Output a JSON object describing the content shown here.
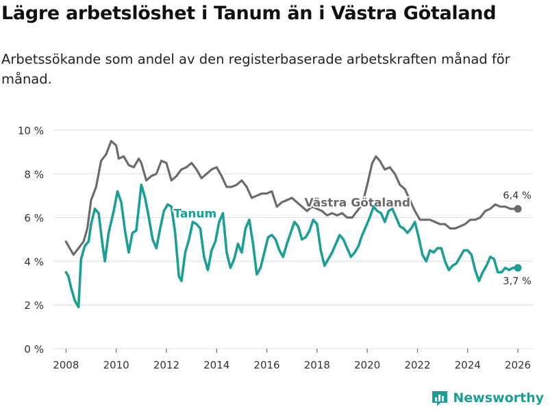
{
  "title": "Lägre arbetslöshet i Tanum än i Västra Götaland",
  "subtitle": "Arbetssökande som andel av den registerbaserade arbetskraften månad för månad.",
  "brand": "Newsworthy",
  "colors": {
    "tanum": "#1b9e93",
    "vg": "#6b6b6b",
    "grid": "#dddddd",
    "text": "#333333"
  },
  "chart_data": {
    "type": "line",
    "title": "Lägre arbetslöshet i Tanum än i Västra Götaland",
    "xlabel": "",
    "ylabel": "",
    "xlim": [
      2007.5,
      2026.6
    ],
    "ylim": [
      0,
      10
    ],
    "yticks": [
      0,
      2,
      4,
      6,
      8,
      10
    ],
    "ytick_labels": [
      "0 %",
      "2 %",
      "4 %",
      "6 %",
      "8 %",
      "10 %"
    ],
    "xticks": [
      2008,
      2010,
      2012,
      2014,
      2016,
      2018,
      2020,
      2022,
      2024,
      2026
    ],
    "xtick_labels": [
      "2008",
      "2010",
      "2012",
      "2014",
      "2016",
      "2018",
      "2020",
      "2022",
      "2024",
      "2026"
    ],
    "series": [
      {
        "name": "Västra Götaland",
        "label": "Västra Götaland",
        "end_label": "6,4 %",
        "x": [
          2008.0,
          2008.15,
          2008.3,
          2008.5,
          2008.7,
          2008.85,
          2009.0,
          2009.2,
          2009.4,
          2009.6,
          2009.8,
          2010.0,
          2010.1,
          2010.3,
          2010.5,
          2010.7,
          2010.9,
          2011.0,
          2011.2,
          2011.4,
          2011.6,
          2011.8,
          2012.0,
          2012.2,
          2012.4,
          2012.6,
          2012.8,
          2013.0,
          2013.2,
          2013.4,
          2013.6,
          2013.8,
          2014.0,
          2014.2,
          2014.4,
          2014.6,
          2014.8,
          2015.0,
          2015.2,
          2015.4,
          2015.6,
          2015.8,
          2016.0,
          2016.2,
          2016.4,
          2016.6,
          2016.8,
          2017.0,
          2017.2,
          2017.4,
          2017.6,
          2017.8,
          2018.0,
          2018.2,
          2018.4,
          2018.6,
          2018.8,
          2019.0,
          2019.2,
          2019.4,
          2019.6,
          2019.8,
          2020.0,
          2020.2,
          2020.35,
          2020.5,
          2020.7,
          2020.9,
          2021.1,
          2021.3,
          2021.5,
          2021.7,
          2021.9,
          2022.1,
          2022.3,
          2022.5,
          2022.7,
          2022.9,
          2023.1,
          2023.3,
          2023.5,
          2023.7,
          2023.9,
          2024.1,
          2024.3,
          2024.5,
          2024.7,
          2024.9,
          2025.1,
          2025.3,
          2025.5,
          2025.7,
          2025.9,
          2026.0
        ],
        "values": [
          4.9,
          4.6,
          4.3,
          4.6,
          4.9,
          5.5,
          6.8,
          7.4,
          8.6,
          8.9,
          9.5,
          9.3,
          8.7,
          8.8,
          8.4,
          8.3,
          8.7,
          8.5,
          7.7,
          7.9,
          8.0,
          8.6,
          8.5,
          7.7,
          7.9,
          8.2,
          8.3,
          8.5,
          8.2,
          7.8,
          8.0,
          8.2,
          8.3,
          7.9,
          7.4,
          7.4,
          7.5,
          7.7,
          7.4,
          6.9,
          7.0,
          7.1,
          7.1,
          7.2,
          6.5,
          6.7,
          6.8,
          6.9,
          6.7,
          6.5,
          6.3,
          6.5,
          6.4,
          6.3,
          6.1,
          6.2,
          6.1,
          6.2,
          6.0,
          6.0,
          6.3,
          6.6,
          7.5,
          8.5,
          8.8,
          8.6,
          8.2,
          8.3,
          8.0,
          7.5,
          7.3,
          6.8,
          6.3,
          5.9,
          5.9,
          5.9,
          5.8,
          5.7,
          5.7,
          5.5,
          5.5,
          5.6,
          5.7,
          5.9,
          5.9,
          6.0,
          6.3,
          6.4,
          6.6,
          6.5,
          6.5,
          6.4,
          6.4,
          6.4
        ]
      },
      {
        "name": "Tanum",
        "label": "Tanum",
        "end_label": "3,7 %",
        "x": [
          2008.0,
          2008.1,
          2008.2,
          2008.35,
          2008.5,
          2008.6,
          2008.75,
          2008.9,
          2009.0,
          2009.15,
          2009.3,
          2009.45,
          2009.55,
          2009.7,
          2009.9,
          2010.05,
          2010.2,
          2010.35,
          2010.5,
          2010.65,
          2010.8,
          2011.0,
          2011.15,
          2011.3,
          2011.45,
          2011.6,
          2011.75,
          2011.9,
          2012.05,
          2012.2,
          2012.35,
          2012.5,
          2012.6,
          2012.75,
          2012.9,
          2013.05,
          2013.2,
          2013.35,
          2013.5,
          2013.65,
          2013.8,
          2013.95,
          2014.1,
          2014.25,
          2014.4,
          2014.55,
          2014.7,
          2014.85,
          2015.0,
          2015.15,
          2015.3,
          2015.45,
          2015.6,
          2015.75,
          2015.9,
          2016.05,
          2016.2,
          2016.35,
          2016.5,
          2016.65,
          2016.8,
          2016.95,
          2017.1,
          2017.25,
          2017.4,
          2017.55,
          2017.7,
          2017.85,
          2018.0,
          2018.15,
          2018.3,
          2018.45,
          2018.6,
          2018.75,
          2018.9,
          2019.05,
          2019.2,
          2019.35,
          2019.5,
          2019.65,
          2019.8,
          2019.95,
          2020.1,
          2020.25,
          2020.4,
          2020.55,
          2020.7,
          2020.85,
          2021.0,
          2021.15,
          2021.3,
          2021.45,
          2021.6,
          2021.75,
          2021.9,
          2022.05,
          2022.2,
          2022.35,
          2022.5,
          2022.65,
          2022.8,
          2022.95,
          2023.1,
          2023.25,
          2023.4,
          2023.55,
          2023.7,
          2023.85,
          2024.0,
          2024.15,
          2024.3,
          2024.45,
          2024.6,
          2024.75,
          2024.9,
          2025.05,
          2025.2,
          2025.35,
          2025.5,
          2025.65,
          2025.8,
          2026.0
        ],
        "values": [
          3.5,
          3.3,
          2.8,
          2.2,
          1.9,
          4.1,
          4.7,
          4.9,
          5.7,
          6.4,
          6.2,
          4.8,
          4.0,
          5.3,
          6.3,
          7.2,
          6.7,
          5.4,
          4.4,
          5.3,
          5.4,
          7.5,
          6.9,
          6.0,
          5.0,
          4.6,
          5.5,
          6.3,
          6.6,
          6.5,
          5.3,
          3.3,
          3.1,
          4.4,
          5.0,
          5.8,
          5.7,
          5.5,
          4.2,
          3.6,
          4.5,
          4.9,
          5.8,
          6.2,
          4.4,
          3.7,
          4.1,
          4.8,
          4.4,
          5.5,
          5.9,
          4.8,
          3.4,
          3.7,
          4.4,
          5.1,
          5.2,
          5.0,
          4.5,
          4.2,
          4.8,
          5.3,
          5.8,
          5.6,
          5.0,
          5.1,
          5.4,
          5.9,
          5.7,
          4.5,
          3.8,
          4.1,
          4.4,
          4.8,
          5.2,
          5.0,
          4.6,
          4.2,
          4.4,
          4.7,
          5.2,
          5.6,
          6.0,
          6.5,
          6.3,
          6.2,
          5.8,
          6.3,
          6.4,
          6.0,
          5.6,
          5.5,
          5.3,
          5.5,
          5.8,
          5.1,
          4.3,
          4.0,
          4.5,
          4.4,
          4.6,
          4.6,
          4.0,
          3.6,
          3.8,
          3.9,
          4.2,
          4.5,
          4.5,
          4.3,
          3.6,
          3.1,
          3.5,
          3.8,
          4.2,
          4.1,
          3.5,
          3.5,
          3.7,
          3.6,
          3.7,
          3.7
        ]
      }
    ]
  }
}
